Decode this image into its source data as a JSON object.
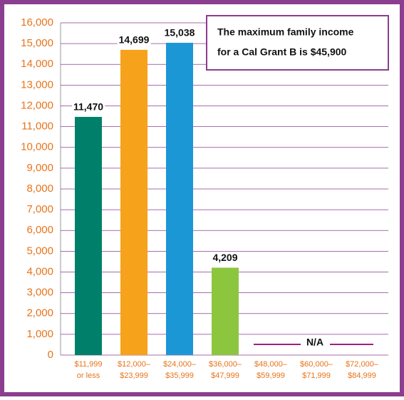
{
  "chart_data": {
    "type": "bar",
    "categories": [
      [
        "$11,999",
        "or less"
      ],
      [
        "$12,000–",
        "$23,999"
      ],
      [
        "$24,000–",
        "$35,999"
      ],
      [
        "$36,000–",
        "$47,999"
      ],
      [
        "$48,000–",
        "$59,999"
      ],
      [
        "$60,000–",
        "$71,999"
      ],
      [
        "$72,000–",
        "$84,999"
      ]
    ],
    "values": [
      11470,
      14699,
      15038,
      4209,
      null,
      null,
      null
    ],
    "value_labels": [
      "11,470",
      "14,699",
      "15,038",
      "4,209",
      null,
      null,
      null
    ],
    "colors": [
      "#00806a",
      "#f7a21b",
      "#1b97d6",
      "#8cc63f",
      null,
      null,
      null
    ],
    "ylim": [
      0,
      16000
    ],
    "yticks": [
      0,
      {
        "value": 1000,
        "label": "1,000"
      },
      {
        "value": 2000,
        "label": "2,000"
      },
      {
        "value": 3000,
        "label": "3,000"
      },
      {
        "value": 4000,
        "label": "4,000"
      },
      {
        "value": 5000,
        "label": "5,000"
      },
      {
        "value": 6000,
        "label": "6,000"
      },
      {
        "value": 7000,
        "label": "7,000"
      },
      {
        "value": 8000,
        "label": "8,000"
      },
      {
        "value": 9000,
        "label": "9,000"
      },
      {
        "value": 10000,
        "label": "10,000"
      },
      {
        "value": 11000,
        "label": "11,000"
      },
      {
        "value": 12000,
        "label": "12,000"
      },
      {
        "value": 13000,
        "label": "13,000"
      },
      {
        "value": 14000,
        "label": "14,000"
      },
      {
        "value": 15000,
        "label": "15,000"
      },
      {
        "value": 16000,
        "label": "16,000"
      }
    ],
    "grid": true,
    "annotation": [
      "The maximum family income",
      "for a Cal Grant B is $45,900"
    ],
    "na_label": "N/A"
  }
}
